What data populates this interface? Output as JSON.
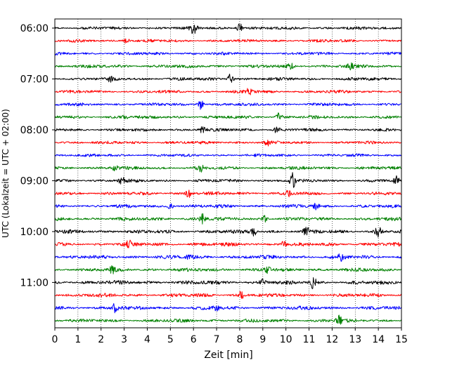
{
  "chart_data": {
    "type": "line",
    "title": "",
    "xlabel": "Zeit  [min]",
    "ylabel": "UTC (Lokalzeit = UTC + 02:00)",
    "xlim": [
      0,
      15
    ],
    "x_ticks": [
      0,
      1,
      2,
      3,
      4,
      5,
      6,
      7,
      8,
      9,
      10,
      11,
      12,
      13,
      14,
      15
    ],
    "x_tick_labels": [
      "0",
      "1",
      "2",
      "3",
      "4",
      "5",
      "6",
      "7",
      "8",
      "9",
      "10",
      "11",
      "12",
      "13",
      "14",
      "15"
    ],
    "y_tick_labels": [
      "06:00",
      "07:00",
      "08:00",
      "09:00",
      "10:00",
      "11:00"
    ],
    "y_tick_rows": [
      0,
      4,
      8,
      12,
      16,
      20
    ],
    "row_interval_minutes": 15,
    "grid": "vertical dotted at each minute",
    "colors": [
      "#000000",
      "#ff0000",
      "#0000ff",
      "#008000"
    ],
    "rows": [
      {
        "start": "06:00",
        "color": "#000000",
        "level": 0.45,
        "events": [
          {
            "t": 6.0,
            "amp": 1.6
          },
          {
            "t": 8.0,
            "amp": 1.0
          }
        ]
      },
      {
        "start": "06:15",
        "color": "#ff0000",
        "level": 0.4,
        "events": [
          {
            "t": 3.1,
            "amp": 0.6
          }
        ]
      },
      {
        "start": "06:30",
        "color": "#0000ff",
        "level": 0.4,
        "events": []
      },
      {
        "start": "06:45",
        "color": "#008000",
        "level": 0.55,
        "events": [
          {
            "t": 10.2,
            "amp": 0.6
          },
          {
            "t": 12.8,
            "amp": 0.5
          }
        ]
      },
      {
        "start": "07:00",
        "color": "#000000",
        "level": 0.5,
        "events": [
          {
            "t": 7.6,
            "amp": 1.2
          },
          {
            "t": 2.4,
            "amp": 0.5
          }
        ]
      },
      {
        "start": "07:15",
        "color": "#ff0000",
        "level": 0.45,
        "events": [
          {
            "t": 8.4,
            "amp": 0.6
          }
        ]
      },
      {
        "start": "07:30",
        "color": "#0000ff",
        "level": 0.45,
        "events": [
          {
            "t": 6.3,
            "amp": 1.1
          }
        ]
      },
      {
        "start": "07:45",
        "color": "#008000",
        "level": 0.5,
        "events": [
          {
            "t": 9.7,
            "amp": 0.8
          },
          {
            "t": 3.0,
            "amp": 0.5
          }
        ]
      },
      {
        "start": "08:00",
        "color": "#000000",
        "level": 0.45,
        "events": [
          {
            "t": 6.4,
            "amp": 0.7
          },
          {
            "t": 9.6,
            "amp": 0.6
          }
        ]
      },
      {
        "start": "08:15",
        "color": "#ff0000",
        "level": 0.45,
        "events": [
          {
            "t": 9.2,
            "amp": 0.6
          }
        ]
      },
      {
        "start": "08:30",
        "color": "#0000ff",
        "level": 0.4,
        "events": []
      },
      {
        "start": "08:45",
        "color": "#008000",
        "level": 0.5,
        "events": [
          {
            "t": 6.3,
            "amp": 0.7
          },
          {
            "t": 2.6,
            "amp": 0.5
          }
        ]
      },
      {
        "start": "09:00",
        "color": "#000000",
        "level": 0.45,
        "events": [
          {
            "t": 10.3,
            "amp": 1.6
          },
          {
            "t": 2.9,
            "amp": 0.8
          },
          {
            "t": 14.8,
            "amp": 0.8
          }
        ]
      },
      {
        "start": "09:15",
        "color": "#ff0000",
        "level": 0.55,
        "events": [
          {
            "t": 5.8,
            "amp": 0.9
          },
          {
            "t": 10.1,
            "amp": 0.6
          }
        ]
      },
      {
        "start": "09:30",
        "color": "#0000ff",
        "level": 0.55,
        "events": [
          {
            "t": 5.0,
            "amp": 0.7
          },
          {
            "t": 11.3,
            "amp": 0.6
          }
        ]
      },
      {
        "start": "09:45",
        "color": "#008000",
        "level": 0.6,
        "events": [
          {
            "t": 6.4,
            "amp": 1.0
          },
          {
            "t": 9.1,
            "amp": 0.6
          }
        ]
      },
      {
        "start": "10:00",
        "color": "#000000",
        "level": 0.7,
        "events": [
          {
            "t": 14.0,
            "amp": 1.1
          },
          {
            "t": 10.9,
            "amp": 1.0
          },
          {
            "t": 8.6,
            "amp": 0.9
          }
        ]
      },
      {
        "start": "10:15",
        "color": "#ff0000",
        "level": 0.65,
        "events": [
          {
            "t": 3.2,
            "amp": 0.7
          },
          {
            "t": 9.9,
            "amp": 0.6
          }
        ]
      },
      {
        "start": "10:30",
        "color": "#0000ff",
        "level": 0.65,
        "events": [
          {
            "t": 5.8,
            "amp": 1.1
          },
          {
            "t": 12.4,
            "amp": 0.7
          }
        ]
      },
      {
        "start": "10:45",
        "color": "#008000",
        "level": 0.6,
        "events": [
          {
            "t": 2.5,
            "amp": 0.7
          },
          {
            "t": 9.2,
            "amp": 0.6
          }
        ]
      },
      {
        "start": "11:00",
        "color": "#000000",
        "level": 0.75,
        "events": [
          {
            "t": 11.2,
            "amp": 1.5
          },
          {
            "t": 9.0,
            "amp": 0.8
          }
        ]
      },
      {
        "start": "11:15",
        "color": "#ff0000",
        "level": 0.65,
        "events": [
          {
            "t": 8.1,
            "amp": 1.0
          }
        ]
      },
      {
        "start": "11:30",
        "color": "#0000ff",
        "level": 0.65,
        "events": [
          {
            "t": 2.6,
            "amp": 0.9
          },
          {
            "t": 7.0,
            "amp": 0.6
          }
        ]
      },
      {
        "start": "11:45",
        "color": "#008000",
        "level": 0.55,
        "events": [
          {
            "t": 12.3,
            "amp": 1.1
          }
        ]
      }
    ]
  }
}
